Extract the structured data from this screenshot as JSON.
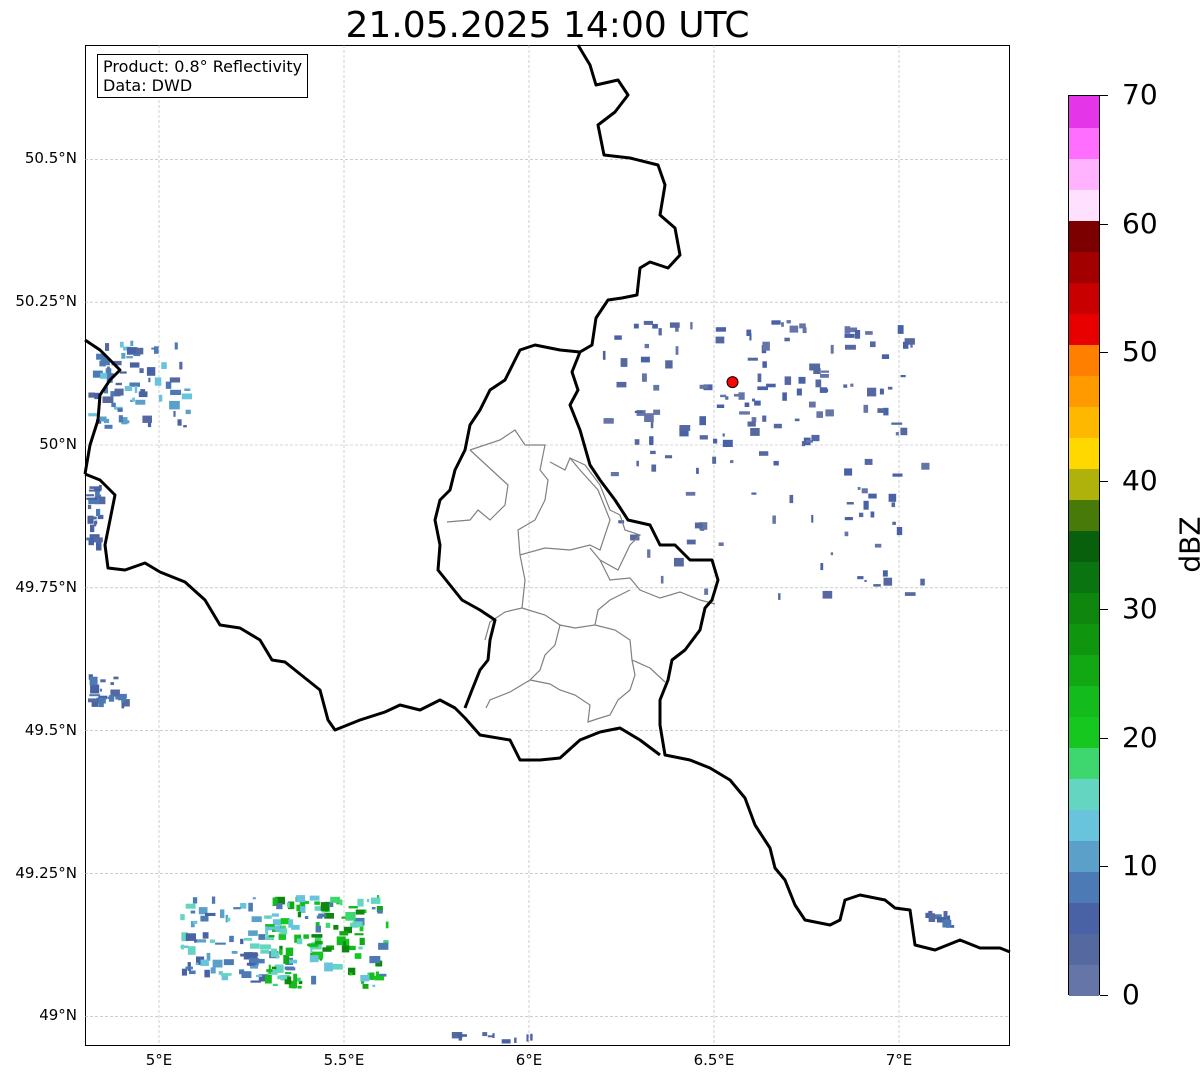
{
  "title": "21.05.2025 14:00 UTC",
  "info": {
    "product": "Product: 0.8° Reflectivity",
    "data": "Data: DWD"
  },
  "lat_ticks": [
    {
      "value": 50.5,
      "label": "50.5°N"
    },
    {
      "value": 50.25,
      "label": "50.25°N"
    },
    {
      "value": 50.0,
      "label": "50°N"
    },
    {
      "value": 49.75,
      "label": "49.75°N"
    },
    {
      "value": 49.5,
      "label": "49.5°N"
    },
    {
      "value": 49.25,
      "label": "49.25°N"
    },
    {
      "value": 49.0,
      "label": "49°N"
    }
  ],
  "lon_ticks": [
    {
      "value": 5.0,
      "label": "5°E"
    },
    {
      "value": 5.5,
      "label": "5.5°E"
    },
    {
      "value": 6.0,
      "label": "6°E"
    },
    {
      "value": 6.5,
      "label": "6.5°E"
    },
    {
      "value": 7.0,
      "label": "7°E"
    }
  ],
  "extent": {
    "lon_min": 4.8,
    "lon_max": 7.3,
    "lat_min": 48.95,
    "lat_max": 50.7
  },
  "radar_site": {
    "lon": 6.55,
    "lat": 50.11,
    "color": "#ff0000"
  },
  "colorbar": {
    "unit": "dBZ",
    "min": 0,
    "max": 70,
    "step": 2.5,
    "tick_values": [
      0,
      10,
      20,
      30,
      40,
      50,
      60,
      70
    ],
    "tick_labels": [
      "0",
      "10",
      "20",
      "30",
      "40",
      "50",
      "60",
      "70"
    ],
    "colors": [
      "#6675a8",
      "#5568a0",
      "#4862a5",
      "#4c7ab4",
      "#5ba0c8",
      "#67c4dc",
      "#63d5c0",
      "#3ed66e",
      "#16c720",
      "#14bb1c",
      "#12a814",
      "#10950f",
      "#0f860e",
      "#0a7410",
      "#085f0c",
      "#477a08",
      "#afb20a",
      "#ffd800",
      "#ffb800",
      "#ff9a00",
      "#ff7f00",
      "#e80000",
      "#c80000",
      "#a20000",
      "#7d0000",
      "#ffe0ff",
      "#ffb3ff",
      "#ff6eff",
      "#e535e8"
    ]
  },
  "colors": {
    "border_national": "#000000",
    "border_regional": "#7f7f7f",
    "grid": "#b0b0b0"
  }
}
